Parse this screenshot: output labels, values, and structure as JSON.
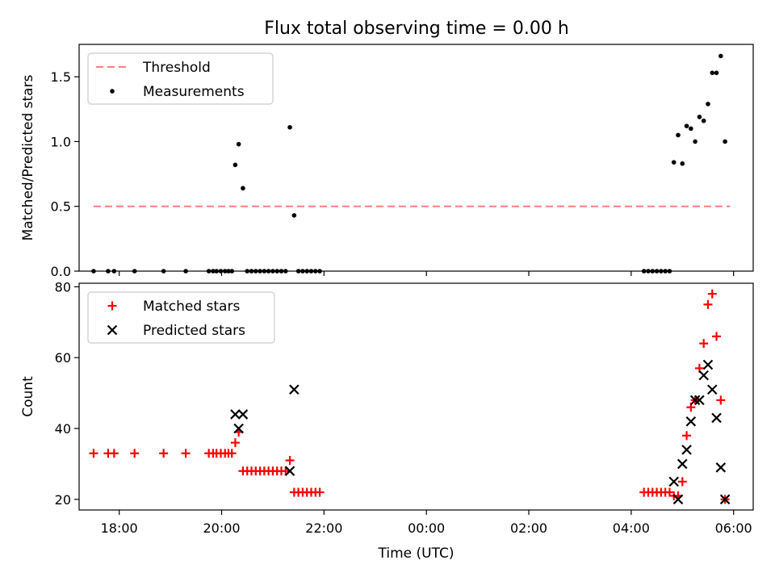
{
  "title": "Flux total observing time = 0.00 h",
  "chart_data": [
    {
      "type": "scatter",
      "ylabel": "Matched/Predicted stars",
      "xlabel": "",
      "ylim": [
        0,
        1.75
      ],
      "xlim": [
        "17:13",
        "06:23"
      ],
      "yticks": [
        0.0,
        0.5,
        1.0,
        1.5
      ],
      "ytick_labels": [
        "0.0",
        "0.5",
        "1.0",
        "1.5"
      ],
      "legend_position": "top-left",
      "threshold": {
        "name": "Threshold",
        "value": 0.5,
        "x_start": "17:30",
        "x_end": "05:56",
        "color": "#ff7f7f"
      },
      "series": [
        {
          "name": "Measurements",
          "marker": "dot",
          "color": "#000000",
          "points": [
            [
              "17:30",
              0
            ],
            [
              "17:47",
              0
            ],
            [
              "17:54",
              0
            ],
            [
              "18:18",
              0
            ],
            [
              "18:52",
              0
            ],
            [
              "19:18",
              0
            ],
            [
              "19:45",
              0
            ],
            [
              "19:50",
              0
            ],
            [
              "19:54",
              0
            ],
            [
              "19:59",
              0
            ],
            [
              "20:04",
              0
            ],
            [
              "20:08",
              0
            ],
            [
              "20:12",
              0
            ],
            [
              "20:16",
              0.82
            ],
            [
              "20:20",
              0.98
            ],
            [
              "20:25",
              0.64
            ],
            [
              "20:30",
              0
            ],
            [
              "20:35",
              0
            ],
            [
              "20:40",
              0
            ],
            [
              "20:45",
              0
            ],
            [
              "20:50",
              0
            ],
            [
              "20:55",
              0
            ],
            [
              "21:00",
              0
            ],
            [
              "21:05",
              0
            ],
            [
              "21:10",
              0
            ],
            [
              "21:15",
              0
            ],
            [
              "21:20",
              1.11
            ],
            [
              "21:25",
              0.43
            ],
            [
              "21:30",
              0
            ],
            [
              "21:35",
              0
            ],
            [
              "21:40",
              0
            ],
            [
              "21:45",
              0
            ],
            [
              "21:50",
              0
            ],
            [
              "21:55",
              0
            ],
            [
              "04:15",
              0
            ],
            [
              "04:20",
              0
            ],
            [
              "04:25",
              0
            ],
            [
              "04:30",
              0
            ],
            [
              "04:35",
              0
            ],
            [
              "04:40",
              0
            ],
            [
              "04:45",
              0
            ],
            [
              "04:50",
              0.84
            ],
            [
              "04:55",
              1.05
            ],
            [
              "05:00",
              0.83
            ],
            [
              "05:05",
              1.12
            ],
            [
              "05:10",
              1.1
            ],
            [
              "05:15",
              1.0
            ],
            [
              "05:20",
              1.19
            ],
            [
              "05:25",
              1.16
            ],
            [
              "05:30",
              1.29
            ],
            [
              "05:35",
              1.53
            ],
            [
              "05:40",
              1.53
            ],
            [
              "05:45",
              1.66
            ],
            [
              "05:50",
              1.0
            ]
          ]
        }
      ]
    },
    {
      "type": "scatter",
      "ylabel": "Count",
      "xlabel": "Time (UTC)",
      "ylim": [
        17,
        81
      ],
      "xlim": [
        "17:13",
        "06:23"
      ],
      "yticks": [
        20,
        40,
        60,
        80
      ],
      "ytick_labels": [
        "20",
        "40",
        "60",
        "80"
      ],
      "xtick_labels": [
        "18:00",
        "20:00",
        "22:00",
        "00:00",
        "02:00",
        "04:00",
        "06:00"
      ],
      "legend_position": "top-left",
      "series": [
        {
          "name": "Matched stars",
          "marker": "plus",
          "color": "#ff0000",
          "points": [
            [
              "17:30",
              33
            ],
            [
              "17:47",
              33
            ],
            [
              "17:54",
              33
            ],
            [
              "18:18",
              33
            ],
            [
              "18:52",
              33
            ],
            [
              "19:18",
              33
            ],
            [
              "19:45",
              33
            ],
            [
              "19:50",
              33
            ],
            [
              "19:54",
              33
            ],
            [
              "19:59",
              33
            ],
            [
              "20:04",
              33
            ],
            [
              "20:08",
              33
            ],
            [
              "20:12",
              33
            ],
            [
              "20:16",
              36
            ],
            [
              "20:20",
              39
            ],
            [
              "20:25",
              28
            ],
            [
              "20:30",
              28
            ],
            [
              "20:35",
              28
            ],
            [
              "20:40",
              28
            ],
            [
              "20:45",
              28
            ],
            [
              "20:50",
              28
            ],
            [
              "20:55",
              28
            ],
            [
              "21:00",
              28
            ],
            [
              "21:05",
              28
            ],
            [
              "21:10",
              28
            ],
            [
              "21:15",
              28
            ],
            [
              "21:20",
              31
            ],
            [
              "21:25",
              22
            ],
            [
              "21:30",
              22
            ],
            [
              "21:35",
              22
            ],
            [
              "21:40",
              22
            ],
            [
              "21:45",
              22
            ],
            [
              "21:50",
              22
            ],
            [
              "21:55",
              22
            ],
            [
              "04:15",
              22
            ],
            [
              "04:20",
              22
            ],
            [
              "04:25",
              22
            ],
            [
              "04:30",
              22
            ],
            [
              "04:35",
              22
            ],
            [
              "04:40",
              22
            ],
            [
              "04:45",
              22
            ],
            [
              "04:50",
              21
            ],
            [
              "04:55",
              21
            ],
            [
              "05:00",
              25
            ],
            [
              "05:05",
              38
            ],
            [
              "05:10",
              46
            ],
            [
              "05:15",
              48
            ],
            [
              "05:20",
              57
            ],
            [
              "05:25",
              64
            ],
            [
              "05:30",
              75
            ],
            [
              "05:35",
              78
            ],
            [
              "05:40",
              66
            ],
            [
              "05:45",
              48
            ],
            [
              "05:50",
              20
            ]
          ]
        },
        {
          "name": "Predicted stars",
          "marker": "x",
          "color": "#000000",
          "points": [
            [
              "20:16",
              44
            ],
            [
              "20:20",
              40
            ],
            [
              "20:25",
              44
            ],
            [
              "21:20",
              28
            ],
            [
              "21:25",
              51
            ],
            [
              "04:50",
              25
            ],
            [
              "04:55",
              20
            ],
            [
              "05:00",
              30
            ],
            [
              "05:05",
              34
            ],
            [
              "05:10",
              42
            ],
            [
              "05:15",
              48
            ],
            [
              "05:20",
              48
            ],
            [
              "05:25",
              55
            ],
            [
              "05:30",
              58
            ],
            [
              "05:35",
              51
            ],
            [
              "05:40",
              43
            ],
            [
              "05:45",
              29
            ],
            [
              "05:50",
              20
            ]
          ]
        }
      ]
    }
  ]
}
